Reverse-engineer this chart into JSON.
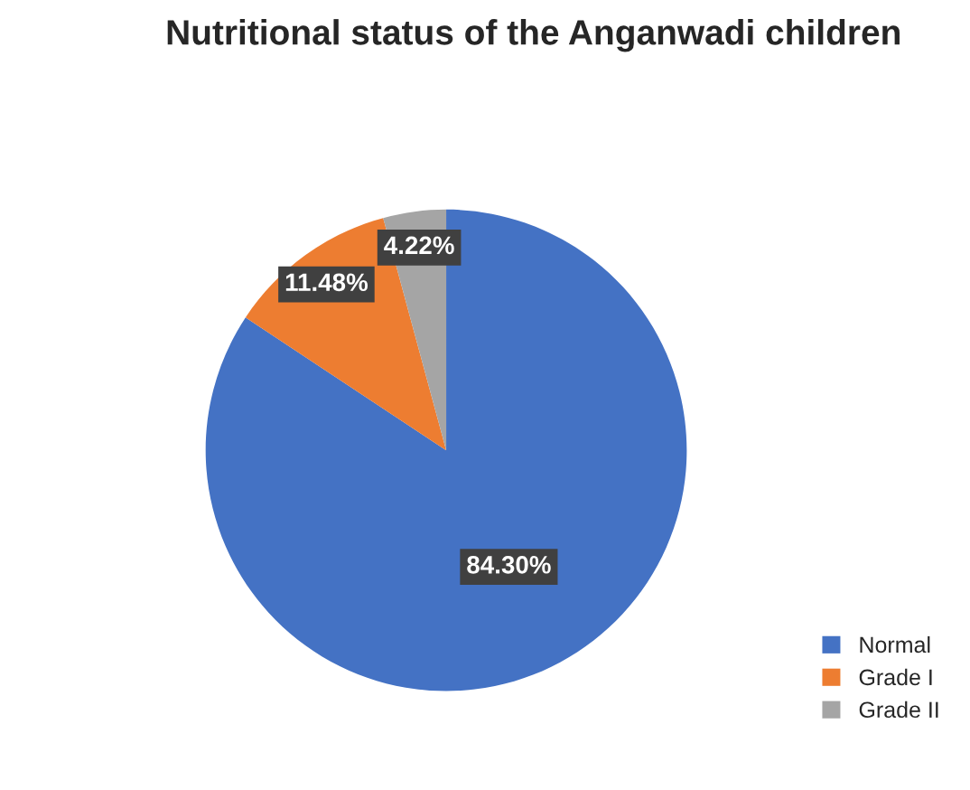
{
  "chart_data": {
    "type": "pie",
    "title": "Nutritional status of the Anganwadi children",
    "categories": [
      "Normal",
      "Grade I",
      "Grade II"
    ],
    "values": [
      84.3,
      11.48,
      4.22
    ],
    "colors": [
      "#4472c4",
      "#ed7d31",
      "#a5a5a5"
    ],
    "value_labels": [
      "84.30%",
      "11.48%",
      "4.22%"
    ],
    "legend": "bottom right"
  }
}
